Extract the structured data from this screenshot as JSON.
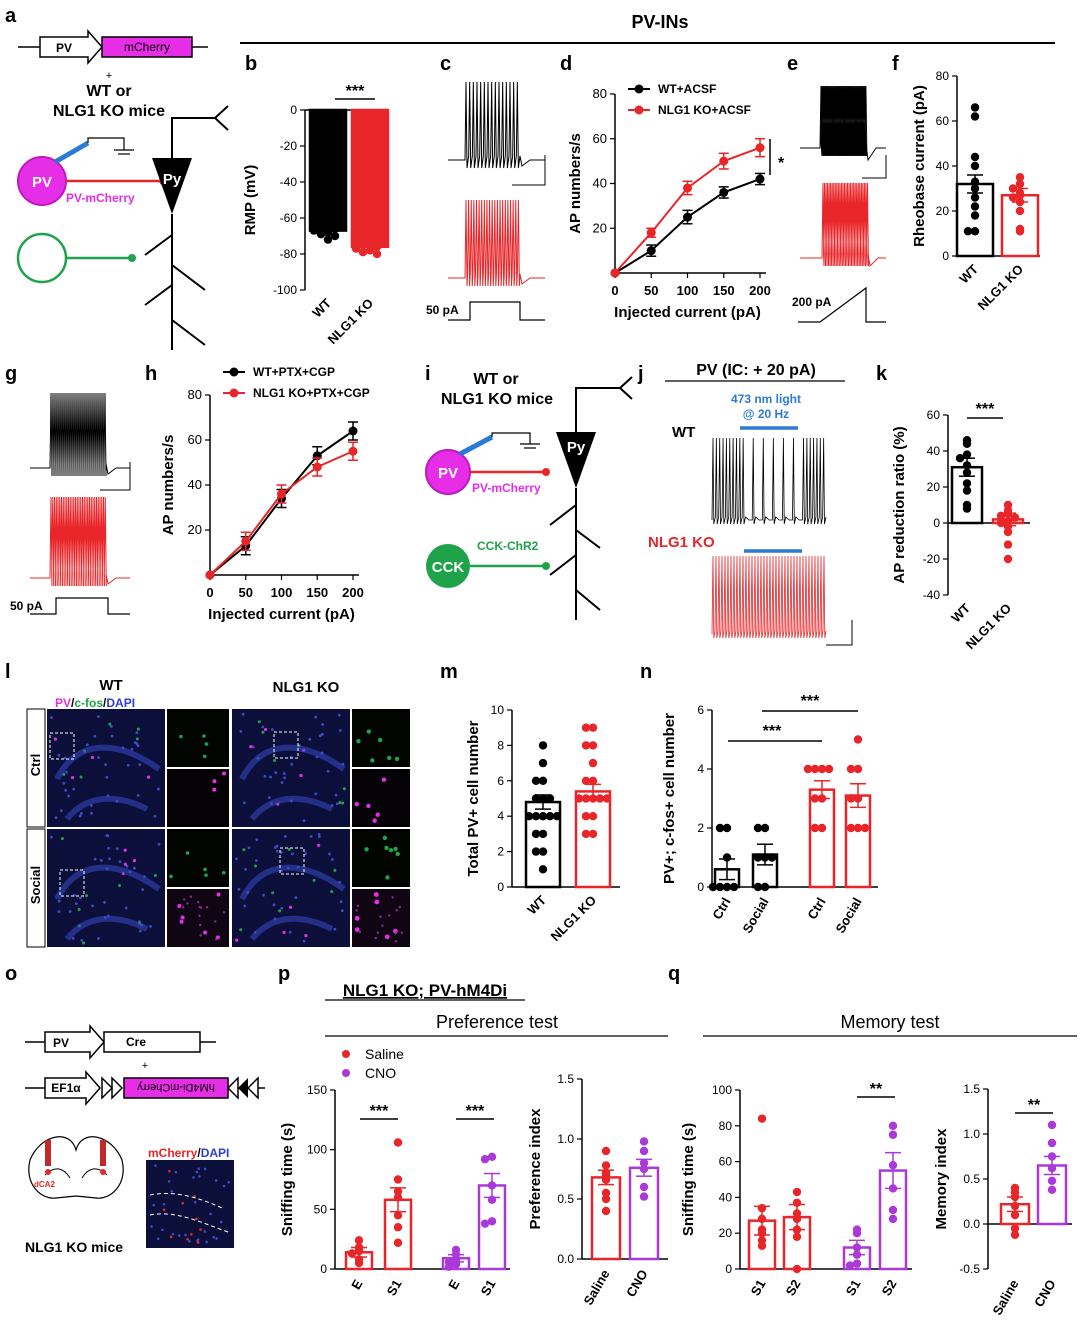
{
  "colors": {
    "wt": "#000000",
    "ko": "#e8262a",
    "cno": "#a93ad8",
    "magenta": "#e62ee6",
    "green": "#1fa34a",
    "blue": "#2b7bd6"
  },
  "section_header": "PV-INs",
  "panels": {
    "a": {
      "letter": "a",
      "construct_promoter": "PV",
      "construct_gene": "mCherry",
      "plus": "+",
      "mice_line1": "WT or",
      "mice_line2": "NLG1 KO mice",
      "cell1": "PV",
      "cell1_label": "PV-mCherry",
      "pyr": "Py"
    },
    "b": {
      "letter": "b",
      "sig": "***"
    },
    "c": {
      "letter": "c",
      "step_label": "50 pA"
    },
    "d": {
      "letter": "d",
      "sig": "*"
    },
    "e": {
      "letter": "e",
      "ramp_label": "200 pA"
    },
    "f": {
      "letter": "f"
    },
    "g": {
      "letter": "g",
      "step_label": "50 pA"
    },
    "h": {
      "letter": "h"
    },
    "i": {
      "letter": "i",
      "mice_line1": "WT or",
      "mice_line2": "NLG1 KO mice",
      "cell1": "PV",
      "cell1_label": "PV-mCherry",
      "cell2": "CCK",
      "cell2_label": "CCK-ChR2",
      "pyr": "Py"
    },
    "j": {
      "letter": "j",
      "title": "PV (IC: + 20 pA)",
      "light_line1": "473 nm light",
      "light_line2": "@ 20 Hz",
      "wt_label": "WT",
      "ko_label": "NLG1 KO"
    },
    "k": {
      "letter": "k",
      "sig": "***"
    },
    "l": {
      "letter": "l",
      "col_wt": "WT",
      "col_ko": "NLG1 KO",
      "stain_pv": "PV",
      "stain_sep1": "/",
      "stain_cfos": "c-fos",
      "stain_sep2": "/",
      "stain_dapi": "DAPI",
      "row_ctrl": "Ctrl",
      "row_social": "Social"
    },
    "m": {
      "letter": "m"
    },
    "n": {
      "letter": "n",
      "sig1": "***",
      "sig2": "***"
    },
    "o": {
      "letter": "o",
      "promoter1": "PV",
      "gene1": "Cre",
      "plus": "+",
      "promoter2": "EF1α",
      "gene2": "hM4Di-mCherry",
      "region": "dCA2",
      "mice": "NLG1 KO mice",
      "stain_mcherry": "mCherry",
      "stain_sep": "/",
      "stain_dapi": "DAPI"
    },
    "p": {
      "letter": "p",
      "group_title": "NLG1 KO; PV-hM4Di",
      "subtitle": "Preference test",
      "legend_saline": "Saline",
      "legend_cno": "CNO",
      "sig1": "***",
      "sig2": "***"
    },
    "q": {
      "letter": "q",
      "subtitle": "Memory test",
      "sig1": "**",
      "sig2": "**"
    }
  },
  "chart_data": [
    {
      "id": "b",
      "type": "bar",
      "ylabel": "RMP (mV)",
      "ylim": [
        -100,
        0
      ],
      "yticks": [
        "0",
        "-20",
        "-40",
        "-60",
        "-80",
        "-100"
      ],
      "categories": [
        "WT",
        "NLG1 KO"
      ],
      "values": [
        -67,
        -76
      ],
      "errors": [
        1.5,
        1.5
      ],
      "points": [
        [
          -62,
          -64,
          -65,
          -66,
          -67,
          -68,
          -69,
          -70,
          -72
        ],
        [
          -66,
          -72,
          -74,
          -75,
          -76,
          -77,
          -78,
          -79,
          -80
        ]
      ]
    },
    {
      "id": "d",
      "type": "line",
      "xlabel": "Injected current (pA)",
      "ylabel": "AP numbers/s",
      "xlim": [
        0,
        200
      ],
      "ylim": [
        0,
        80
      ],
      "xticks": [
        "0",
        "50",
        "100",
        "150",
        "200"
      ],
      "yticks": [
        "20",
        "40",
        "60",
        "80"
      ],
      "x": [
        0,
        50,
        100,
        150,
        200
      ],
      "series": [
        {
          "name": "WT+ACSF",
          "values": [
            0,
            10,
            25,
            36,
            42
          ],
          "errors": [
            0,
            2.5,
            3,
            2.5,
            2.5
          ]
        },
        {
          "name": "NLG1 KO+ACSF",
          "values": [
            0,
            18,
            38,
            50,
            56
          ],
          "errors": [
            0,
            2,
            3,
            3.5,
            4
          ]
        }
      ]
    },
    {
      "id": "f",
      "type": "bar",
      "ylabel": "Rheobase current (pA)",
      "ylim": [
        0,
        80
      ],
      "yticks": [
        "0",
        "20",
        "40",
        "60",
        "80"
      ],
      "categories": [
        "WT",
        "NLG1 KO"
      ],
      "values": [
        32,
        27
      ],
      "errors": [
        4,
        3
      ],
      "points": [
        [
          66,
          62,
          44,
          40,
          33,
          30,
          26,
          22,
          18,
          11,
          11
        ],
        [
          35,
          32,
          30,
          28,
          27,
          26,
          24,
          20,
          12,
          11
        ]
      ]
    },
    {
      "id": "h",
      "type": "line",
      "xlabel": "Injected current (pA)",
      "ylabel": "AP numbers/s",
      "xlim": [
        0,
        200
      ],
      "ylim": [
        0,
        80
      ],
      "xticks": [
        "0",
        "50",
        "100",
        "150",
        "200"
      ],
      "yticks": [
        "20",
        "40",
        "60",
        "80"
      ],
      "x": [
        0,
        50,
        100,
        150,
        200
      ],
      "series": [
        {
          "name": "WT+PTX+CGP",
          "values": [
            0,
            13,
            34,
            53,
            64
          ],
          "errors": [
            0,
            4,
            4,
            4,
            4
          ]
        },
        {
          "name": "NLG1 KO+PTX+CGP",
          "values": [
            0,
            15,
            36,
            48,
            55
          ],
          "errors": [
            0,
            4,
            4,
            4,
            4
          ]
        }
      ]
    },
    {
      "id": "k",
      "type": "bar",
      "ylabel": "AP reduction ratio (%)",
      "ylim": [
        -40,
        60
      ],
      "yticks": [
        "60",
        "40",
        "20",
        "0",
        "-20",
        "-40"
      ],
      "categories": [
        "WT",
        "NLG1 KO"
      ],
      "values": [
        31,
        2
      ],
      "errors": [
        5,
        3.5
      ],
      "points": [
        [
          46,
          44,
          38,
          36,
          32,
          28,
          22,
          18,
          10,
          8
        ],
        [
          10,
          7,
          5,
          4,
          3,
          1,
          0,
          -2,
          -5,
          -12,
          -20
        ]
      ]
    },
    {
      "id": "m",
      "type": "bar",
      "ylabel": "Total PV+ cell number",
      "ylim": [
        0,
        10
      ],
      "yticks": [
        "0",
        "2",
        "4",
        "6",
        "8",
        "10"
      ],
      "categories": [
        "WT",
        "NLG1 KO"
      ],
      "values": [
        4.8,
        5.4
      ],
      "errors": [
        0.4,
        0.4
      ],
      "points": [
        [
          8,
          7,
          6,
          6,
          5,
          5,
          5,
          4,
          4,
          4,
          4,
          4,
          3,
          3,
          2,
          2,
          1
        ],
        [
          9,
          9,
          8,
          8,
          7,
          6,
          6,
          5,
          5,
          5,
          5,
          5,
          4,
          4,
          3,
          3
        ]
      ]
    },
    {
      "id": "n",
      "type": "bar",
      "ylabel": "PV+; c-fos+ cell number",
      "ylim": [
        0,
        6
      ],
      "yticks": [
        "0",
        "2",
        "4",
        "6"
      ],
      "categories": [
        "Ctrl",
        "Social",
        "Ctrl",
        "Social"
      ],
      "values": [
        0.6,
        1.1,
        3.3,
        3.1
      ],
      "errors": [
        0.35,
        0.35,
        0.3,
        0.4
      ],
      "points": [
        [
          2,
          2,
          1,
          0,
          0,
          0,
          0
        ],
        [
          2,
          2,
          1,
          1,
          1,
          0,
          0
        ],
        [
          4,
          4,
          4,
          4,
          3,
          3,
          2,
          2
        ],
        [
          5,
          4,
          4,
          3,
          3,
          2,
          2,
          2
        ]
      ]
    },
    {
      "id": "p1",
      "type": "bar",
      "ylabel": "Sniffing time (s)",
      "ylim": [
        0,
        150
      ],
      "yticks": [
        "0",
        "50",
        "100",
        "150"
      ],
      "categories": [
        "E",
        "S1",
        "E",
        "S1"
      ],
      "values": [
        14,
        58,
        9,
        70
      ],
      "errors": [
        4,
        10,
        3,
        10
      ],
      "points": [
        [
          24,
          18,
          15,
          13,
          8,
          5
        ],
        [
          106,
          75,
          65,
          60,
          45,
          35,
          22
        ],
        [
          16,
          12,
          8,
          6,
          4,
          2
        ],
        [
          94,
          92,
          70,
          58,
          40,
          38
        ]
      ]
    },
    {
      "id": "p2",
      "type": "bar",
      "ylabel": "Preference index",
      "ylim": [
        0,
        1.5
      ],
      "yticks": [
        "0.0",
        "0.5",
        "1.0",
        "1.5"
      ],
      "categories": [
        "Saline",
        "CNO"
      ],
      "values": [
        0.68,
        0.76
      ],
      "errors": [
        0.06,
        0.07
      ],
      "points": [
        [
          0.9,
          0.78,
          0.72,
          0.7,
          0.66,
          0.55,
          0.5,
          0.4
        ],
        [
          0.98,
          0.9,
          0.8,
          0.75,
          0.6,
          0.52
        ]
      ]
    },
    {
      "id": "q1",
      "type": "bar",
      "ylabel": "Sniffing time (s)",
      "ylim": [
        0,
        100
      ],
      "yticks": [
        "0",
        "20",
        "40",
        "60",
        "80",
        "100"
      ],
      "categories": [
        "S1",
        "S2",
        "S1",
        "S2"
      ],
      "values": [
        27,
        29,
        12,
        55
      ],
      "errors": [
        8,
        7,
        4,
        10
      ],
      "points": [
        [
          84,
          34,
          28,
          22,
          20,
          16,
          13
        ],
        [
          43,
          37,
          31,
          28,
          22,
          18,
          0
        ],
        [
          22,
          20,
          12,
          8,
          3,
          2
        ],
        [
          80,
          75,
          58,
          45,
          33,
          28
        ]
      ]
    },
    {
      "id": "q2",
      "type": "bar",
      "ylabel": "Memory index",
      "ylim": [
        -0.5,
        1.5
      ],
      "yticks": [
        "-0.5",
        "0.0",
        "0.5",
        "1.0",
        "1.5"
      ],
      "categories": [
        "Saline",
        "CNO"
      ],
      "values": [
        0.22,
        0.65
      ],
      "errors": [
        0.08,
        0.1
      ],
      "points": [
        [
          0.4,
          0.35,
          0.3,
          0.2,
          0.1,
          -0.05,
          -0.12
        ],
        [
          1.1,
          0.9,
          0.75,
          0.62,
          0.48,
          0.38
        ]
      ]
    }
  ]
}
